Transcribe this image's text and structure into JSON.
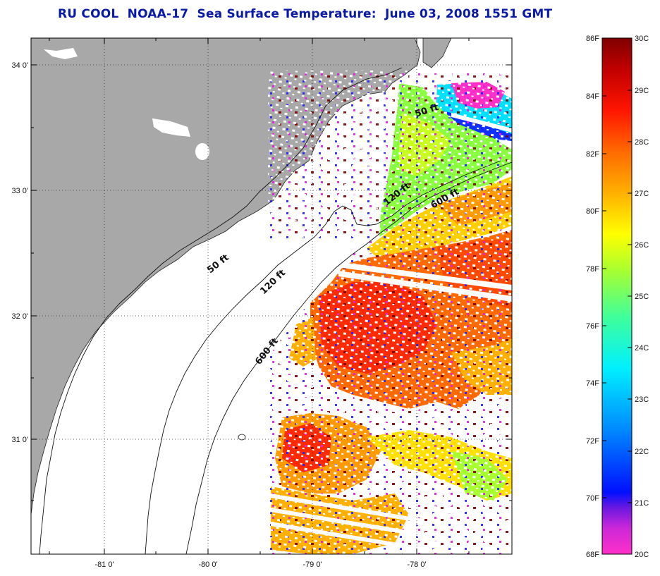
{
  "title": "RU COOL  NOAA-17  Sea Surface Temperature:  June 03, 2008 1551 GMT",
  "axes": {
    "longitude_labels": [
      "-81 0'",
      "-80 0'",
      "-79 0'",
      "-78 0'"
    ],
    "latitude_labels": [
      "34 0'",
      "33 0'",
      "32 0'",
      "31 0'"
    ]
  },
  "contour_labels": [
    "50 ft",
    "120 ft",
    "600 ft",
    "50 ft",
    "120 ft",
    "600 ft"
  ],
  "colorbar": {
    "fahrenheit_labels": [
      "86F",
      "84F",
      "82F",
      "80F",
      "78F",
      "76F",
      "74F",
      "72F",
      "70F",
      "68F"
    ],
    "celsius_labels": [
      "30C",
      "29C",
      "28C",
      "27C",
      "26C",
      "25C",
      "24C",
      "23C",
      "22C",
      "21C",
      "20C"
    ],
    "colors": [
      "#ff30c8",
      "#8a22d8",
      "#0010ff",
      "#0088ff",
      "#00f0ff",
      "#40ff9a",
      "#a8ff30",
      "#ffff00",
      "#ffb000",
      "#ff6a00",
      "#ff1500",
      "#c00000",
      "#800000"
    ]
  },
  "colors": {
    "land": "#a8a8a8",
    "title": "#0a1aa8"
  }
}
